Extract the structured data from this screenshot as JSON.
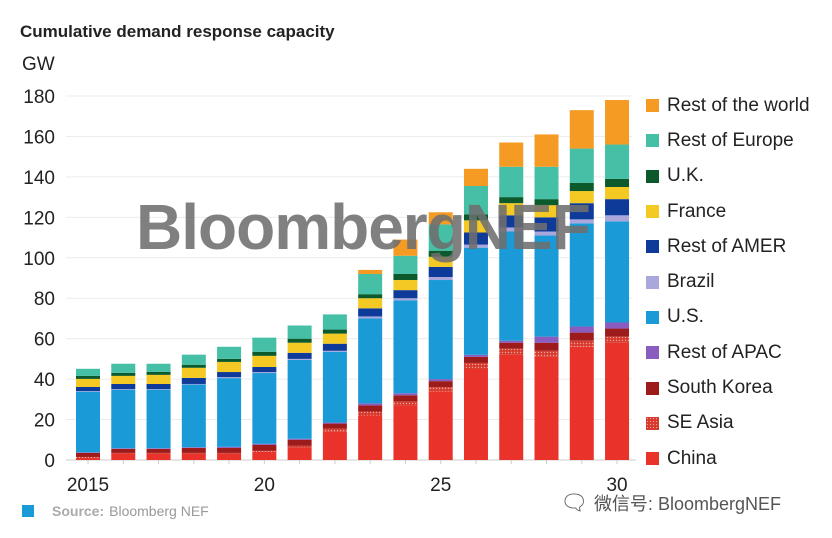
{
  "chart_data": {
    "type": "bar",
    "stacked": true,
    "title": "Cumulative demand response capacity",
    "ylabel": "GW",
    "xlabel": "",
    "ylim": [
      0,
      180
    ],
    "yticks": [
      0,
      20,
      40,
      60,
      80,
      100,
      120,
      140,
      160,
      180
    ],
    "categories": [
      "2015",
      "2016",
      "2017",
      "2018",
      "2019",
      "2020",
      "2021",
      "2022",
      "2023",
      "2024",
      "2025",
      "2026",
      "2027",
      "2028",
      "2029",
      "2030"
    ],
    "xtick_labels": [
      {
        "index": 0,
        "label": "2015"
      },
      {
        "index": 5,
        "label": "20"
      },
      {
        "index": 10,
        "label": "25"
      },
      {
        "index": 15,
        "label": "30"
      }
    ],
    "legend_position": "right",
    "series": [
      {
        "name": "China",
        "color": "#e8322a",
        "values": [
          1,
          3,
          3,
          3,
          3,
          4,
          6,
          14,
          22,
          27,
          34,
          45,
          52,
          51,
          56,
          58
        ]
      },
      {
        "name": "SE Asia",
        "color": "#d63a2c",
        "pattern": "dots",
        "values": [
          0.5,
          0.5,
          0.5,
          0.5,
          0.5,
          0.5,
          1,
          1.5,
          2,
          2,
          2,
          3,
          3,
          3,
          3,
          3
        ]
      },
      {
        "name": "South Korea",
        "color": "#9e1b1b",
        "values": [
          2,
          2,
          2,
          2.5,
          2.5,
          3,
          3,
          2.5,
          3,
          3,
          3,
          3,
          3,
          4,
          4,
          4
        ]
      },
      {
        "name": "Rest of APAC",
        "color": "#8a5cc0",
        "values": [
          0.3,
          0.3,
          0.3,
          0.3,
          0.5,
          0.5,
          0.5,
          0.5,
          1,
          1,
          1,
          1,
          1,
          3,
          3,
          3
        ]
      },
      {
        "name": "U.S.",
        "color": "#1a9ad6",
        "values": [
          30,
          29,
          29,
          31,
          34,
          35,
          39,
          35,
          42,
          46,
          49,
          53,
          54,
          50,
          51,
          50
        ]
      },
      {
        "name": "Brazil",
        "color": "#a9a7dc",
        "values": [
          0.3,
          0.3,
          0.3,
          0.3,
          0.5,
          0.5,
          0.5,
          0.5,
          1,
          1,
          1.5,
          1.5,
          2,
          2,
          2,
          3
        ]
      },
      {
        "name": "Rest of AMER",
        "color": "#0e3a9a",
        "values": [
          2,
          2.5,
          2.5,
          3,
          2.5,
          2.5,
          3,
          3.5,
          4,
          4,
          5,
          6,
          6,
          7,
          8,
          8
        ]
      },
      {
        "name": "France",
        "color": "#f5c923",
        "values": [
          4,
          4,
          4.5,
          5,
          5,
          5.5,
          5,
          5,
          5,
          5,
          5,
          6,
          6,
          6,
          6,
          6
        ]
      },
      {
        "name": "U.K.",
        "color": "#0c5a2c",
        "values": [
          1.5,
          1.5,
          1.5,
          1.5,
          1.5,
          2,
          2,
          2,
          2,
          3,
          3,
          3,
          3,
          3,
          4,
          4
        ]
      },
      {
        "name": "Rest of Europe",
        "color": "#45bfa5",
        "values": [
          3.5,
          4.5,
          4,
          5,
          6,
          7,
          6.5,
          7.5,
          10,
          9,
          13,
          14,
          15,
          16,
          17,
          17
        ]
      },
      {
        "name": "Rest of the world",
        "color": "#f59a23",
        "values": [
          0,
          0,
          0,
          0,
          0,
          0,
          0,
          0,
          2,
          8,
          6,
          8.5,
          12,
          16,
          19,
          22
        ]
      }
    ]
  },
  "watermark": "BloombergNEF",
  "footer": {
    "source_label": "Source:",
    "source_text": "Bloomberg NEF",
    "wechat": "微信号: BloombergNEF"
  }
}
